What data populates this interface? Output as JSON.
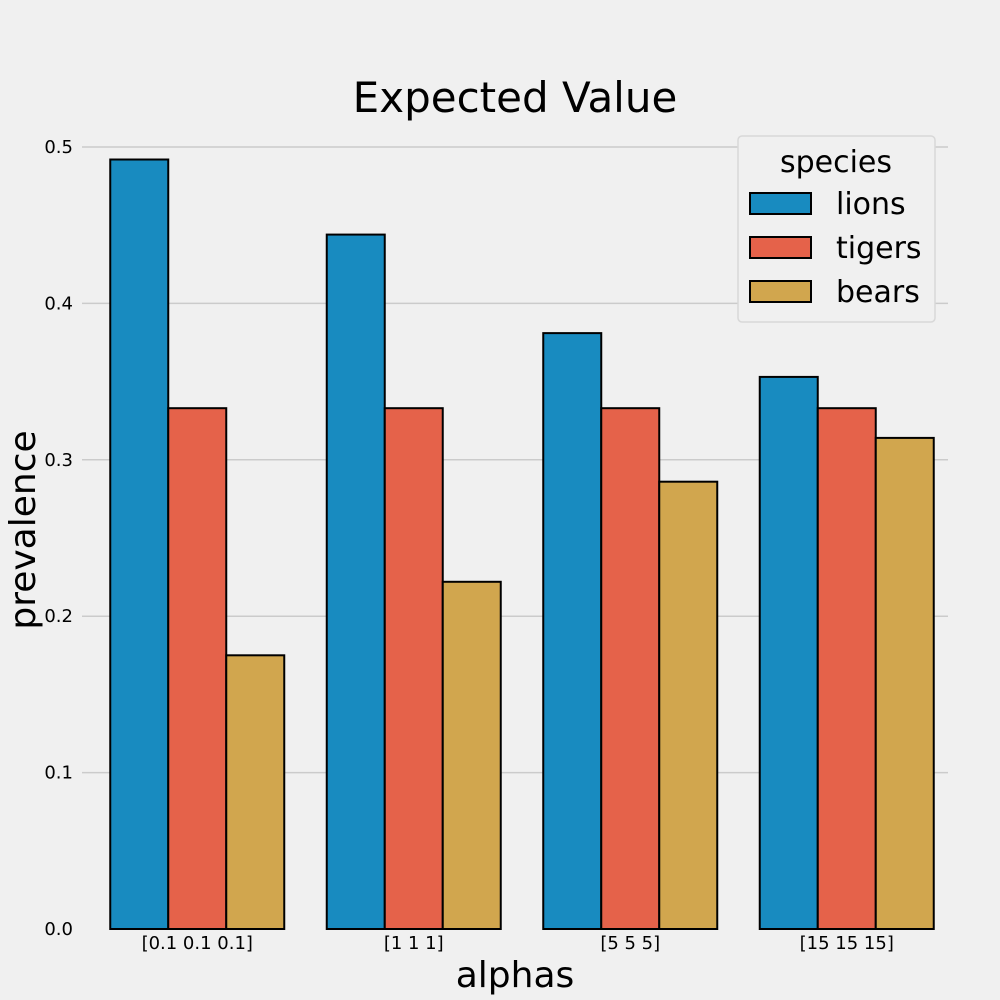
{
  "chart_data": {
    "type": "bar",
    "title": "Expected Value",
    "xlabel": "alphas",
    "ylabel": "prevalence",
    "categories": [
      "[0.1 0.1 0.1]",
      "[1 1 1]",
      "[5 5 5]",
      "[15 15 15]"
    ],
    "series": [
      {
        "name": "lions",
        "color": "#188bc0",
        "values": [
          0.492,
          0.444,
          0.381,
          0.353
        ]
      },
      {
        "name": "tigers",
        "color": "#e5624a",
        "values": [
          0.333,
          0.333,
          0.333,
          0.333
        ]
      },
      {
        "name": "bears",
        "color": "#d1a64e",
        "values": [
          0.175,
          0.222,
          0.286,
          0.314
        ]
      }
    ],
    "ylim": [
      0,
      0.5
    ],
    "yticks": [
      "0.0",
      "0.1",
      "0.2",
      "0.3",
      "0.4",
      "0.5"
    ],
    "grid": true,
    "legend": {
      "title": "species",
      "placement": "top-right"
    }
  }
}
